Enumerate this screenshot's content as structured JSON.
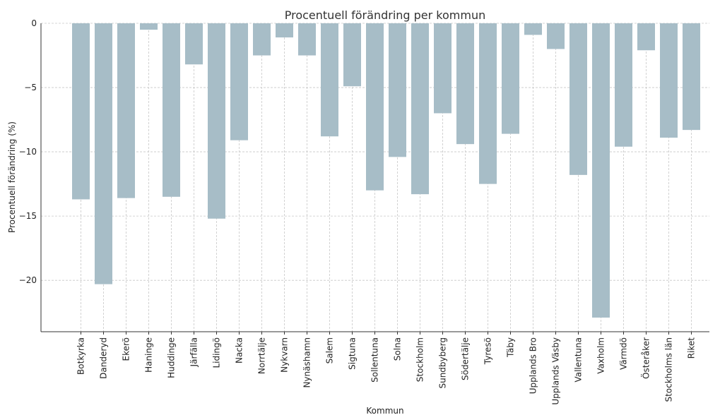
{
  "chart_data": {
    "type": "bar",
    "title": "Procentuell förändring per kommun",
    "xlabel": "Kommun",
    "ylabel": "Procentuell förändring (%)",
    "ylim": [
      -24,
      0
    ],
    "yticks": [
      0,
      -5,
      -10,
      -15,
      -20
    ],
    "ytick_labels": [
      "0",
      "−5",
      "−10",
      "−15",
      "−20"
    ],
    "grid": true,
    "bar_color": "#a7bdc7",
    "categories": [
      "Botkyrka",
      "Danderyd",
      "Ekerö",
      "Haninge",
      "Huddinge",
      "Järfälla",
      "Lidingö",
      "Nacka",
      "Norrtälje",
      "Nykvarn",
      "Nynäshamn",
      "Salem",
      "Sigtuna",
      "Sollentuna",
      "Solna",
      "Stockholm",
      "Sundbyberg",
      "Södertälje",
      "Tyresö",
      "Täby",
      "Upplands Bro",
      "Upplands Väsby",
      "Vallentuna",
      "Vaxholm",
      "Värmdö",
      "Österåker",
      "Stockholms län",
      "Riket"
    ],
    "values": [
      -13.7,
      -20.3,
      -13.6,
      -0.5,
      -13.5,
      -3.2,
      -15.2,
      -9.1,
      -2.5,
      -1.1,
      -2.5,
      -8.8,
      -4.9,
      -13.0,
      -10.4,
      -13.3,
      -7.0,
      -9.4,
      -12.5,
      -8.6,
      -0.9,
      -2.0,
      -11.8,
      -22.9,
      -9.6,
      -2.1,
      -8.9,
      -8.3
    ]
  }
}
